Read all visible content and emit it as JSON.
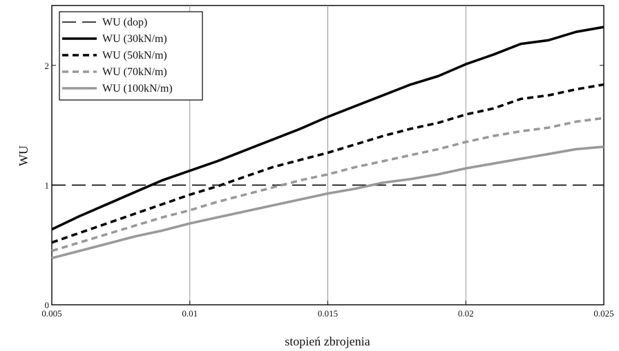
{
  "chart_data": {
    "type": "line",
    "title": "",
    "xlabel": "stopień zbrojenia",
    "ylabel": "WU",
    "xlim": [
      0.005,
      0.025
    ],
    "ylim": [
      0,
      2.5
    ],
    "x_ticks": [
      "0.005",
      "0.01",
      "0.015",
      "0.02",
      "0.025"
    ],
    "y_ticks": [
      "0",
      "1",
      "2"
    ],
    "grid": "vertical",
    "legend_position": "top-left",
    "x": [
      0.005,
      0.006,
      0.007,
      0.008,
      0.009,
      0.01,
      0.011,
      0.012,
      0.013,
      0.014,
      0.015,
      0.016,
      0.017,
      0.018,
      0.019,
      0.02,
      0.021,
      0.022,
      0.023,
      0.024,
      0.025
    ],
    "series": [
      {
        "name": "WU (dop)",
        "style": "dashed-thin",
        "color": "#000000",
        "values": [
          1,
          1,
          1,
          1,
          1,
          1,
          1,
          1,
          1,
          1,
          1,
          1,
          1,
          1,
          1,
          1,
          1,
          1,
          1,
          1,
          1
        ]
      },
      {
        "name": "WU (30kN/m)",
        "style": "solid-thick",
        "color": "#000000",
        "values": [
          0.63,
          0.74,
          0.84,
          0.94,
          1.04,
          1.12,
          1.2,
          1.29,
          1.38,
          1.47,
          1.57,
          1.66,
          1.75,
          1.84,
          1.91,
          2.01,
          2.09,
          2.18,
          2.21,
          2.28,
          2.32
        ]
      },
      {
        "name": "WU (50kN/m)",
        "style": "dashed-thick",
        "color": "#000000",
        "values": [
          0.52,
          0.6,
          0.68,
          0.76,
          0.84,
          0.92,
          0.99,
          1.07,
          1.15,
          1.21,
          1.27,
          1.34,
          1.41,
          1.47,
          1.52,
          1.59,
          1.64,
          1.72,
          1.75,
          1.8,
          1.84
        ]
      },
      {
        "name": "WU (70kN/m)",
        "style": "dashed-thick",
        "color": "#999999",
        "values": [
          0.45,
          0.52,
          0.59,
          0.66,
          0.73,
          0.79,
          0.86,
          0.92,
          0.98,
          1.04,
          1.09,
          1.15,
          1.2,
          1.25,
          1.3,
          1.36,
          1.41,
          1.45,
          1.48,
          1.53,
          1.56
        ]
      },
      {
        "name": "WU (100kN/m)",
        "style": "solid-thick",
        "color": "#999999",
        "values": [
          0.39,
          0.45,
          0.51,
          0.57,
          0.62,
          0.68,
          0.73,
          0.78,
          0.83,
          0.88,
          0.93,
          0.97,
          1.02,
          1.05,
          1.09,
          1.14,
          1.18,
          1.22,
          1.26,
          1.3,
          1.32
        ]
      }
    ]
  }
}
